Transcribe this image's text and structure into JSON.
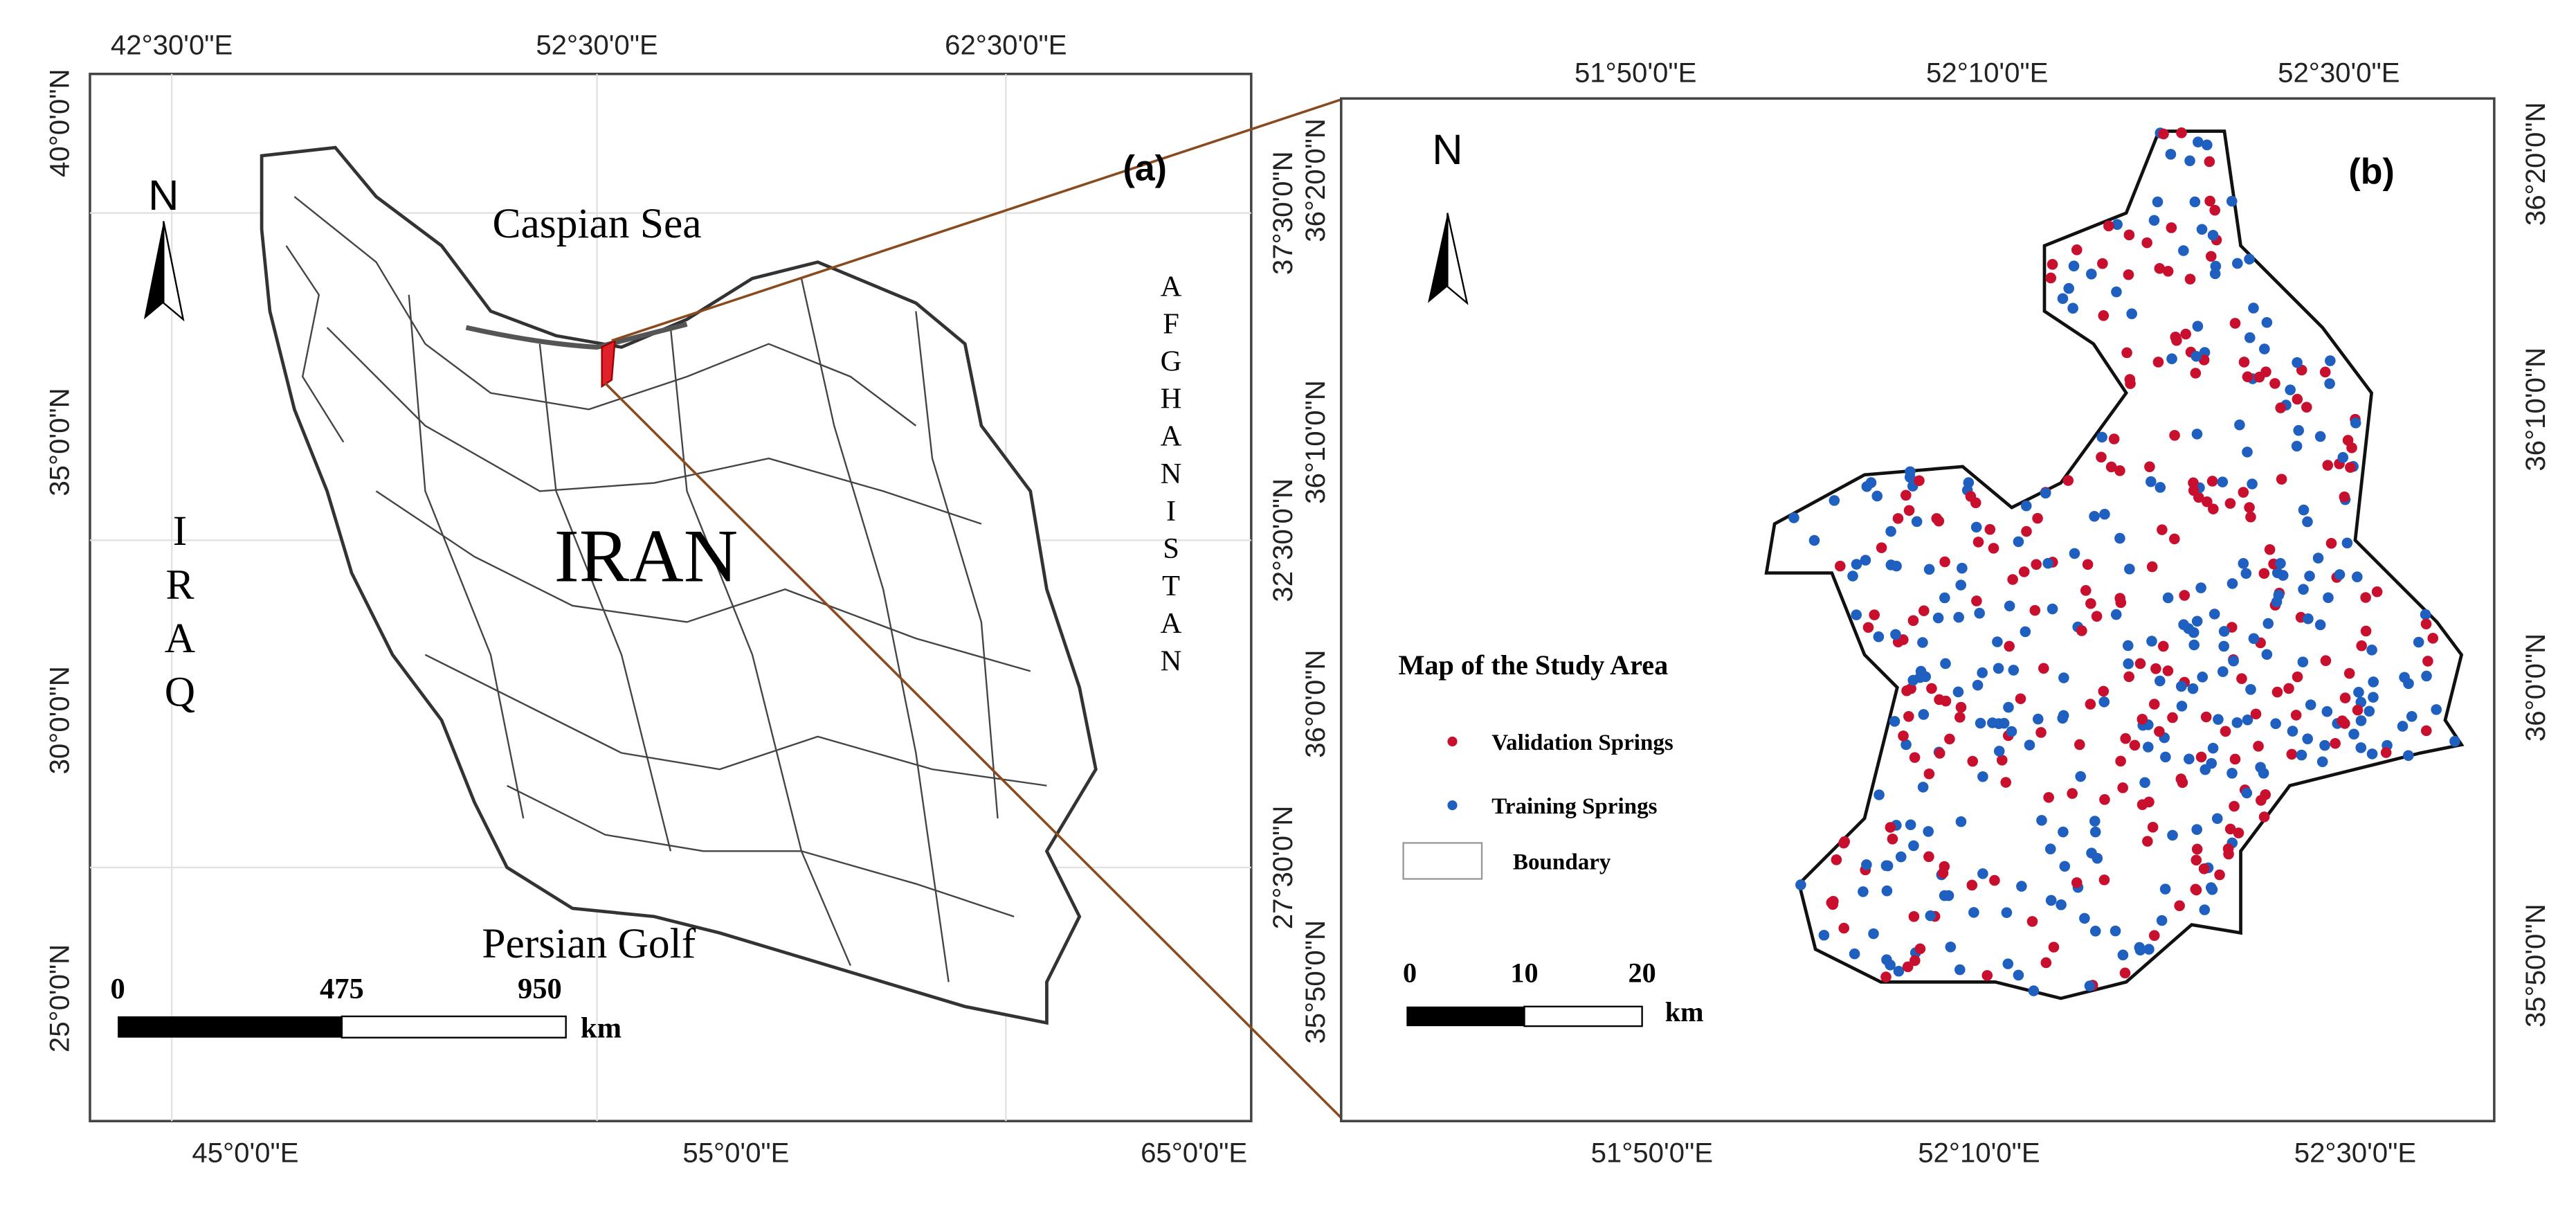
{
  "panel_a": {
    "label": "(a)",
    "north": "N",
    "top_ticks": [
      "42°30'0\"E",
      "52°30'0\"E",
      "62°30'0\"E"
    ],
    "bottom_ticks": [
      "45°0'0\"E",
      "55°0'0\"E",
      "65°0'0\"E"
    ],
    "left_ticks": [
      "40°0'0\"N",
      "35°0'0\"N",
      "30°0'0\"N",
      "25°0'0\"N"
    ],
    "right_ticks": [
      "37°30'0\"N",
      "32°30'0\"N",
      "27°30'0\"N"
    ],
    "places": {
      "sea": "Caspian Sea",
      "country": "IRAN",
      "west": "IRAQ",
      "east": "AFGHANISTAN",
      "gulf": "Persian Golf"
    },
    "scale": [
      "0",
      "475",
      "950"
    ],
    "scale_unit": "km"
  },
  "panel_b": {
    "label": "(b)",
    "north": "N",
    "top_ticks": [
      "51°50'0\"E",
      "52°10'0\"E",
      "52°30'0\"E"
    ],
    "bottom_ticks": [
      "51°50'0\"E",
      "52°10'0\"E",
      "52°30'0\"E"
    ],
    "left_ticks": [
      "36°20'0\"N",
      "36°10'0\"N",
      "36°0'0\"N",
      "35°50'0\"N"
    ],
    "right_ticks": [
      "36°20'0\"N",
      "36°10'0\"N",
      "36°0'0\"N",
      "35°50'0\"N"
    ],
    "legend": {
      "title": "Map of the Study Area",
      "items": [
        "Validation Springs",
        "Training Springs",
        "Boundary"
      ]
    },
    "scale": [
      "0",
      "10",
      "20"
    ],
    "scale_unit": "km"
  }
}
